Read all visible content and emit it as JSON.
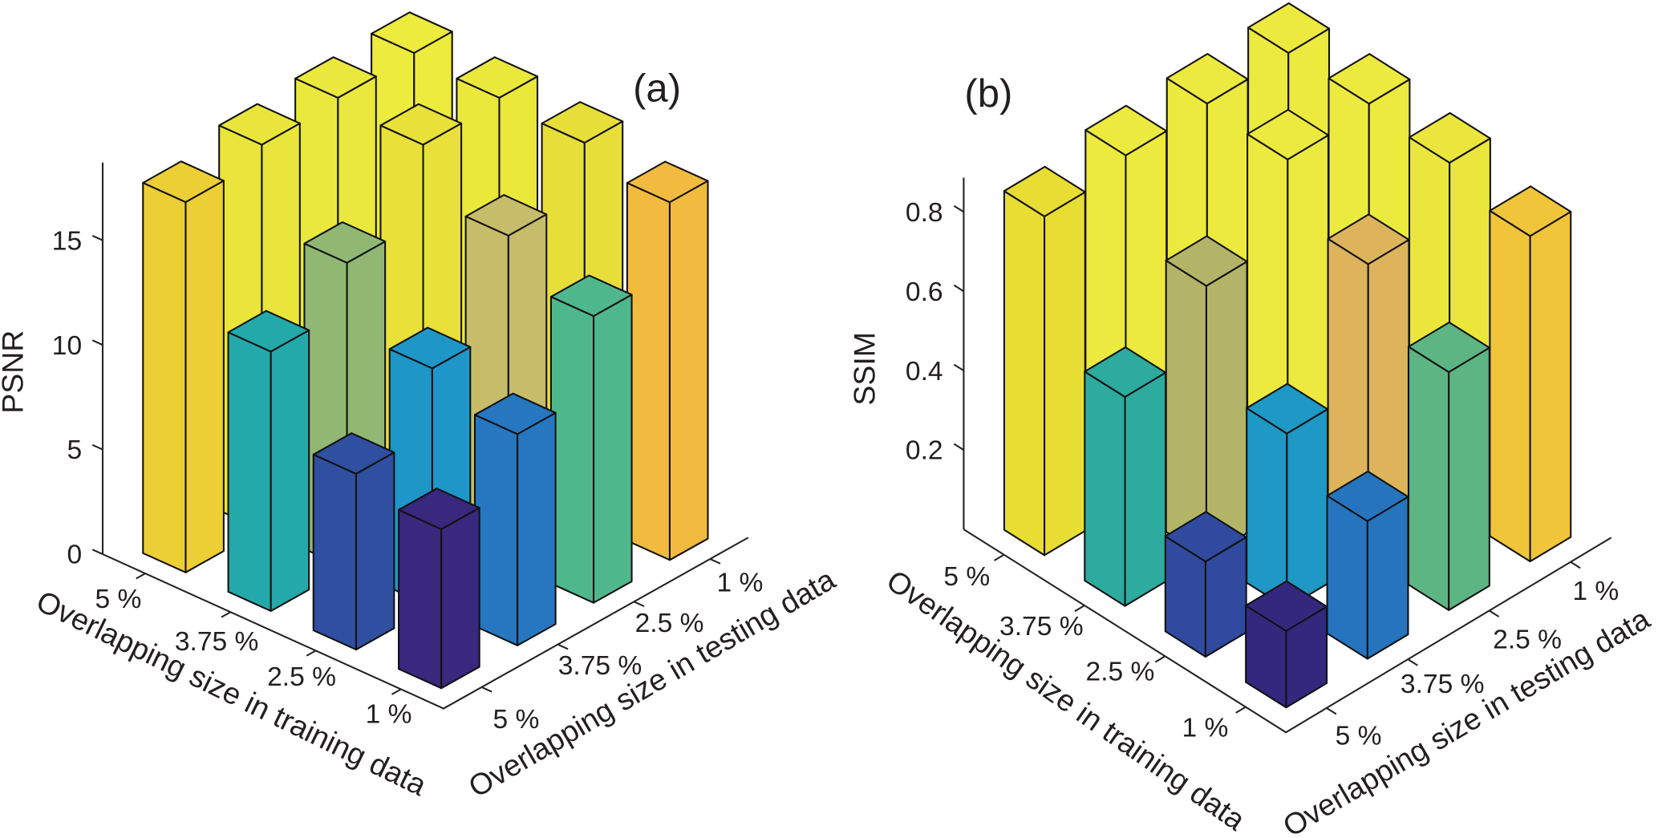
{
  "chart_data": [
    {
      "type": "bar3d",
      "title": "(a)",
      "zlabel": "PSNR",
      "xlabel": "Overlapping size in training data",
      "ylabel": "Overlapping size in testing data",
      "x_categories": [
        "5 %",
        "3.75 %",
        "2.5 %",
        "1 %"
      ],
      "y_categories": [
        "5 %",
        "3.75 %",
        "2.5 %",
        "1 %"
      ],
      "zticks": [
        "0",
        "5",
        "10",
        "15"
      ],
      "zlim": [
        0,
        19
      ],
      "values": [
        [
          17.7,
          18.4,
          18.6,
          18.7
        ],
        [
          12.4,
          14.6,
          18.2,
          18.4
        ],
        [
          8.4,
          11.4,
          15.7,
          18.1
        ],
        [
          7.6,
          10.1,
          13.7,
          17.1
        ]
      ],
      "colors": [
        [
          "#ecce35",
          "#eae53a",
          "#eae83c",
          "#eceb3e"
        ],
        [
          "#23a9a9",
          "#90b873",
          "#e9e03a",
          "#ebe83c"
        ],
        [
          "#2f4fa0",
          "#1e96c7",
          "#c6bc6a",
          "#e8de3a"
        ],
        [
          "#38287e",
          "#2677c0",
          "#4fb78c",
          "#f2bb3f"
        ]
      ]
    },
    {
      "type": "bar3d",
      "title": "(b)",
      "zlabel": "SSIM",
      "xlabel": "Overlapping size in training data",
      "ylabel": "Overlapping size in testing data",
      "x_categories": [
        "5 %",
        "3.75 %",
        "2.5 %",
        "1 %"
      ],
      "y_categories": [
        "5 %",
        "3.75 %",
        "2.5 %",
        "1 %"
      ],
      "zticks": [
        "0.2",
        "0.4",
        "0.6",
        "0.8"
      ],
      "zlim": [
        0,
        0.9
      ],
      "values": [
        [
          0.854,
          0.885,
          0.893,
          0.898
        ],
        [
          0.527,
          0.684,
          0.88,
          0.898
        ],
        [
          0.24,
          0.44,
          0.744,
          0.877
        ],
        [
          0.193,
          0.347,
          0.6,
          0.82
        ]
      ],
      "colors": [
        [
          "#e8dd32",
          "#ecea3e",
          "#ecea3e",
          "#ecea3e"
        ],
        [
          "#2dab9f",
          "#b3b468",
          "#ecea3e",
          "#ecea3e"
        ],
        [
          "#2f4a9e",
          "#1e98c5",
          "#ddb45c",
          "#eae63c"
        ],
        [
          "#33287e",
          "#2674be",
          "#5cb583",
          "#f1c53a"
        ]
      ]
    }
  ]
}
